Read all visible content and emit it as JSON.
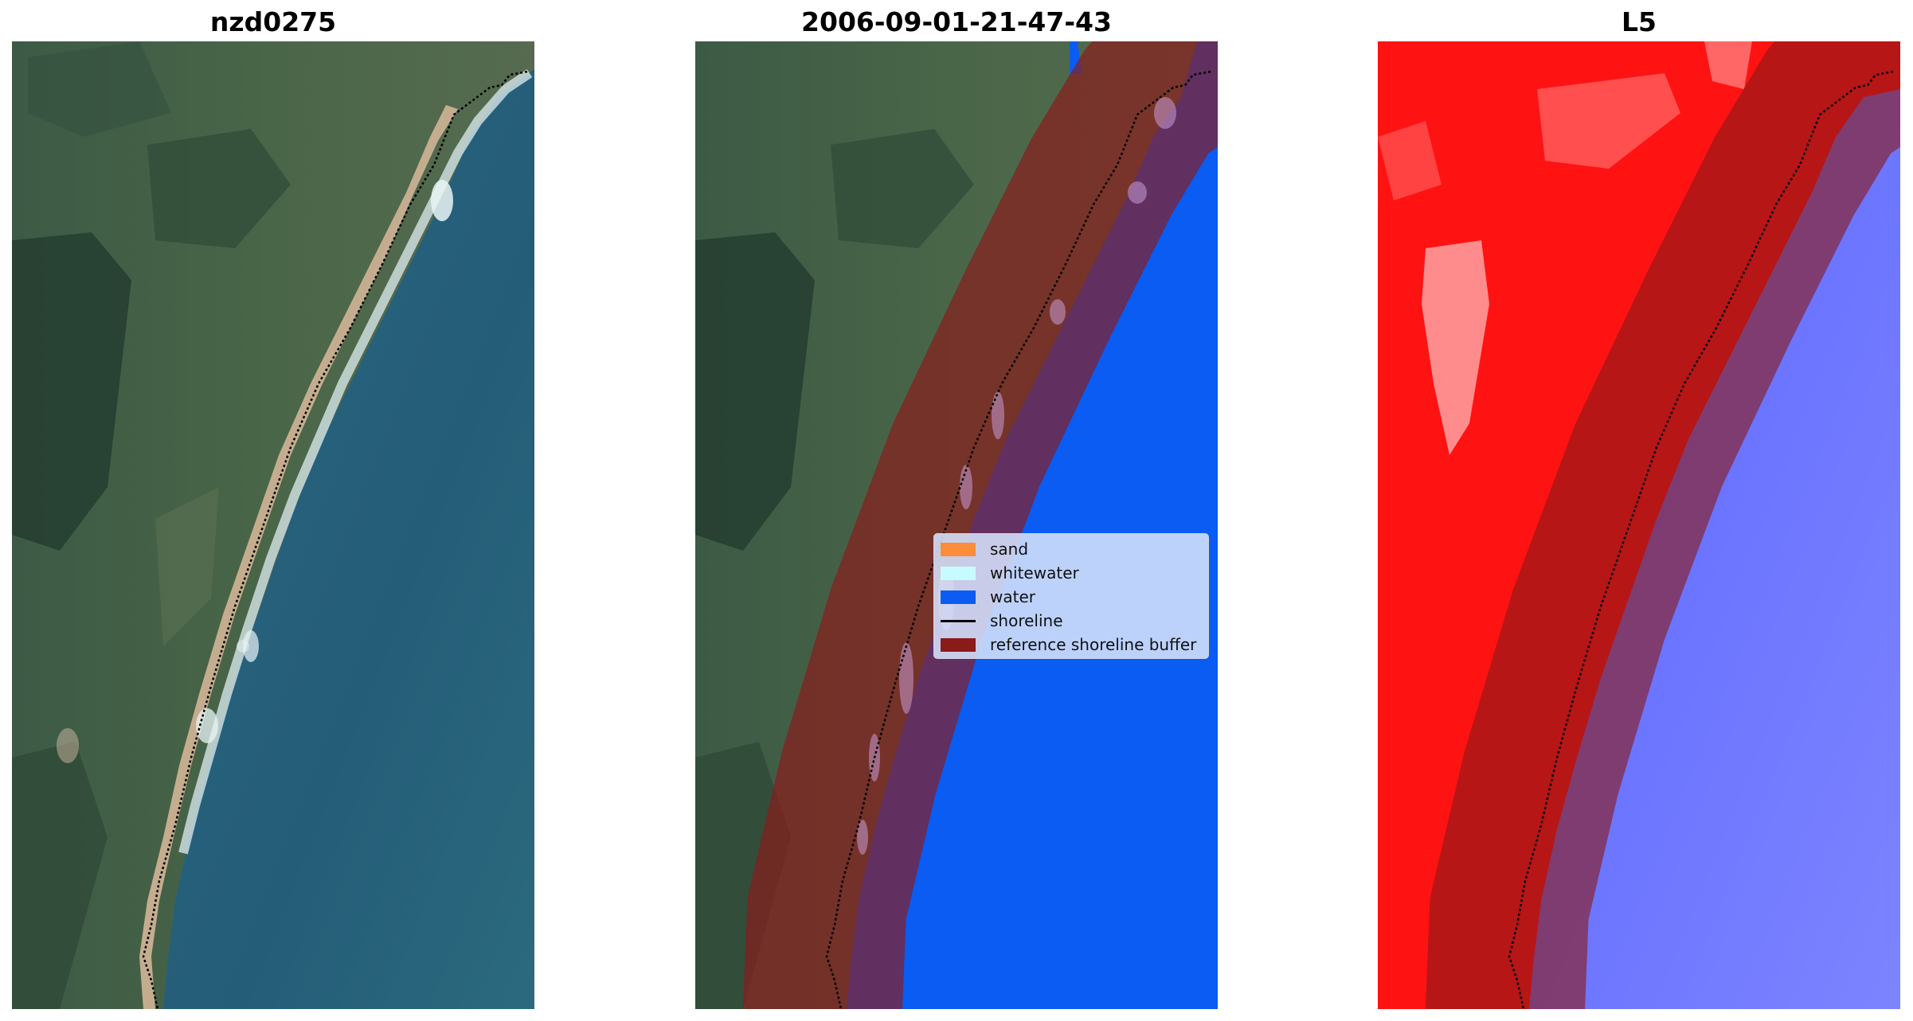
{
  "panels": [
    {
      "title": "nzd0275"
    },
    {
      "title": "2006-09-01-21-47-43"
    },
    {
      "title": "L5"
    }
  ],
  "legend": {
    "items": [
      {
        "label": "sand",
        "color": "#ff8c3a"
      },
      {
        "label": "whitewater",
        "color": "#c8fbff"
      },
      {
        "label": "water",
        "color": "#0a5cf2"
      },
      {
        "label": "shoreline",
        "color": "#000000"
      },
      {
        "label": "reference shoreline buffer",
        "color": "#8b1a1a"
      }
    ]
  }
}
